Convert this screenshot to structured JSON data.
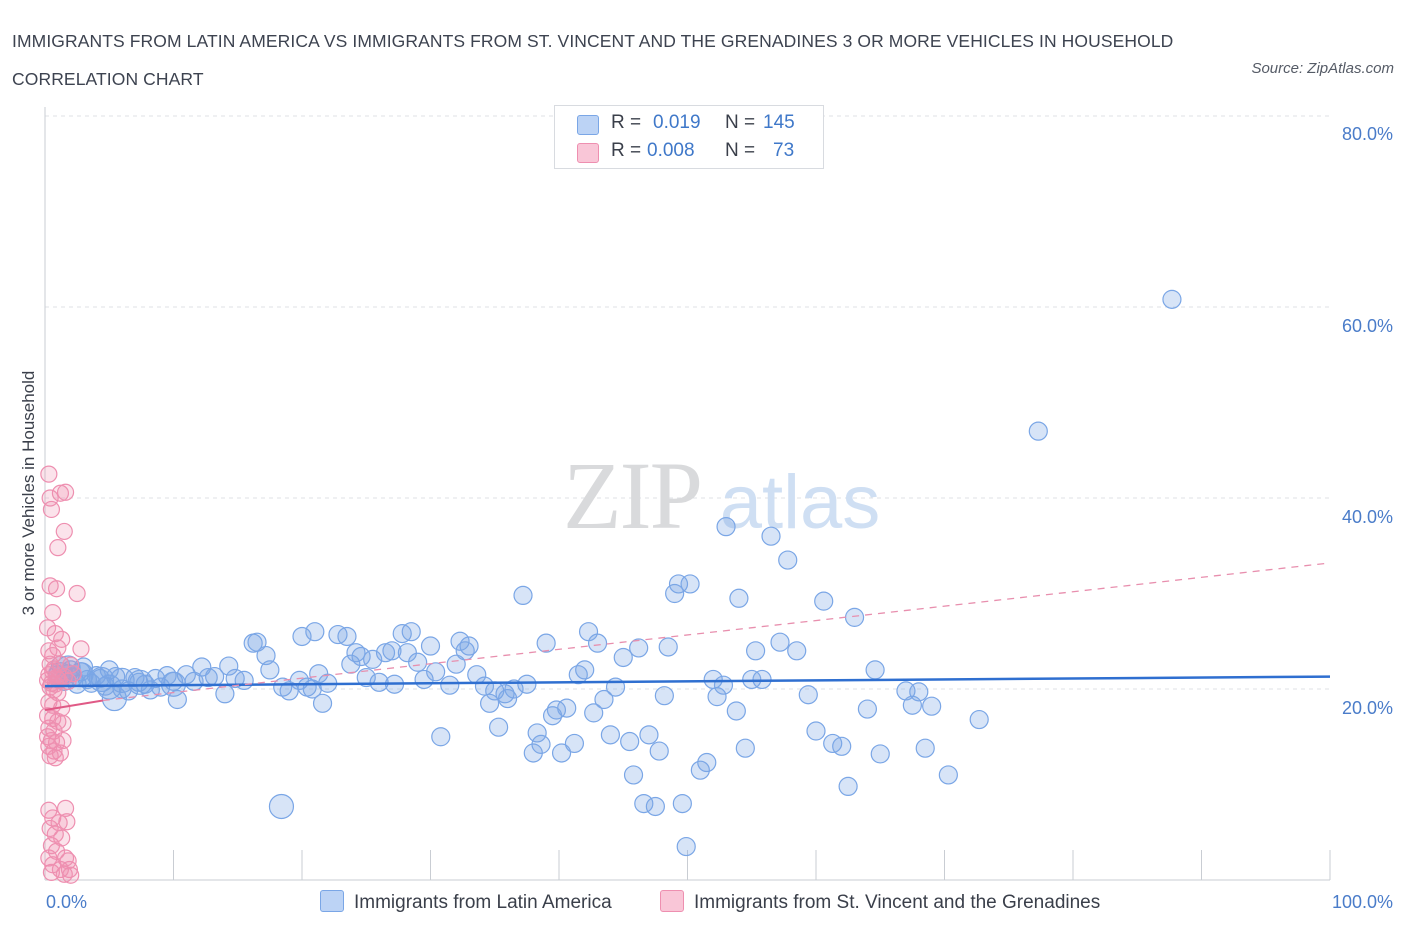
{
  "chart_data": {
    "type": "scatter",
    "title": "IMMIGRANTS FROM LATIN AMERICA VS IMMIGRANTS FROM ST. VINCENT AND THE GRENADINES 3 OR MORE VEHICLES IN HOUSEHOLD CORRELATION CHART",
    "source": "Source: ZipAtlas.com",
    "ylabel": "3 or more Vehicles in Household",
    "xlim": [
      0,
      100
    ],
    "ylim": [
      0,
      80
    ],
    "x_tick_labels": [
      "0.0%",
      "100.0%"
    ],
    "y_ticks": [
      20,
      40,
      60,
      80
    ],
    "y_tick_labels": [
      "20.0%",
      "40.0%",
      "60.0%",
      "80.0%"
    ],
    "watermark": {
      "zip": "ZIP",
      "atlas": "atlas"
    },
    "legend": {
      "r_label": "R =",
      "n_label": "N =",
      "entries": [
        {
          "r": "0.019",
          "n": "145"
        },
        {
          "r": "0.008",
          "n": "73"
        }
      ]
    },
    "series": [
      {
        "name": "Immigrants from Latin America",
        "color": "#7aa6e6",
        "fill": "rgba(122,166,230,0.30)",
        "trend": {
          "x0": 0,
          "y0": 20.3,
          "x1": 100,
          "y1": 21.3,
          "color": "#2f6fd0"
        },
        "points": [
          [
            1.0,
            21.5
          ],
          [
            1.2,
            22.5
          ],
          [
            1.5,
            20.8
          ],
          [
            1.8,
            21.6
          ],
          [
            2.0,
            22.0
          ],
          [
            2.2,
            21.2
          ],
          [
            2.5,
            20.5
          ],
          [
            2.8,
            21.8
          ],
          [
            3.0,
            22.3
          ],
          [
            3.3,
            21.0
          ],
          [
            3.6,
            20.6
          ],
          [
            4.0,
            21.4
          ],
          [
            4.3,
            21.1
          ],
          [
            4.7,
            20.3
          ],
          [
            5.0,
            22.0
          ],
          [
            5.5,
            21.3
          ],
          [
            6.0,
            20.0
          ],
          [
            6.5,
            19.8
          ],
          [
            7.0,
            21.2
          ],
          [
            7.3,
            20.7
          ],
          [
            7.8,
            20.5
          ],
          [
            8.2,
            19.9
          ],
          [
            8.6,
            21.1
          ],
          [
            9.0,
            20.2
          ],
          [
            9.5,
            21.4
          ],
          [
            10.0,
            20.8
          ],
          [
            10.3,
            18.9
          ],
          [
            11.0,
            21.5
          ],
          [
            11.6,
            20.8
          ],
          [
            12.2,
            22.3
          ],
          [
            12.7,
            21.2
          ],
          [
            13.2,
            21.3
          ],
          [
            14.0,
            19.5
          ],
          [
            14.3,
            22.4
          ],
          [
            14.8,
            21.1
          ],
          [
            15.5,
            20.9
          ],
          [
            16.2,
            24.8
          ],
          [
            16.5,
            24.9
          ],
          [
            17.2,
            23.5
          ],
          [
            17.5,
            22.0
          ],
          [
            18.5,
            20.2
          ],
          [
            19.0,
            19.8
          ],
          [
            19.8,
            20.9
          ],
          [
            20.0,
            25.5
          ],
          [
            20.4,
            20.2
          ],
          [
            20.8,
            20.0
          ],
          [
            21.0,
            26.0
          ],
          [
            21.3,
            21.6
          ],
          [
            21.6,
            18.5
          ],
          [
            22.0,
            20.6
          ],
          [
            22.8,
            25.7
          ],
          [
            23.5,
            25.5
          ],
          [
            23.8,
            22.6
          ],
          [
            24.2,
            23.8
          ],
          [
            24.6,
            23.4
          ],
          [
            25.0,
            21.2
          ],
          [
            25.5,
            23.1
          ],
          [
            26.0,
            20.7
          ],
          [
            26.5,
            23.8
          ],
          [
            27.0,
            24.0
          ],
          [
            27.2,
            20.5
          ],
          [
            27.8,
            25.8
          ],
          [
            28.2,
            23.8
          ],
          [
            28.5,
            26.0
          ],
          [
            29.0,
            22.8
          ],
          [
            29.5,
            21.0
          ],
          [
            30.0,
            24.5
          ],
          [
            30.4,
            21.8
          ],
          [
            30.8,
            15.0
          ],
          [
            31.5,
            20.4
          ],
          [
            32.0,
            22.6
          ],
          [
            32.3,
            25.0
          ],
          [
            32.7,
            24.0
          ],
          [
            33.0,
            24.5
          ],
          [
            33.6,
            21.5
          ],
          [
            34.2,
            20.3
          ],
          [
            34.6,
            18.5
          ],
          [
            35.0,
            19.8
          ],
          [
            35.3,
            16.0
          ],
          [
            35.8,
            19.5
          ],
          [
            36.0,
            19.0
          ],
          [
            36.5,
            20.0
          ],
          [
            37.2,
            29.8
          ],
          [
            37.5,
            20.5
          ],
          [
            38.0,
            13.3
          ],
          [
            38.3,
            15.4
          ],
          [
            38.6,
            14.2
          ],
          [
            39.0,
            24.8
          ],
          [
            39.5,
            17.2
          ],
          [
            39.8,
            17.8
          ],
          [
            40.2,
            13.3
          ],
          [
            40.6,
            18.0
          ],
          [
            41.2,
            14.3
          ],
          [
            41.5,
            21.5
          ],
          [
            42.0,
            22.0
          ],
          [
            42.3,
            26.0
          ],
          [
            42.7,
            17.5
          ],
          [
            43.0,
            24.8
          ],
          [
            43.5,
            18.9
          ],
          [
            44.0,
            15.2
          ],
          [
            44.4,
            20.2
          ],
          [
            45.0,
            23.3
          ],
          [
            45.5,
            14.5
          ],
          [
            45.8,
            11.0
          ],
          [
            46.2,
            24.3
          ],
          [
            46.6,
            8.0
          ],
          [
            47.0,
            15.2
          ],
          [
            47.5,
            7.7
          ],
          [
            47.8,
            13.5
          ],
          [
            48.2,
            19.3
          ],
          [
            48.5,
            24.4
          ],
          [
            49.0,
            30.0
          ],
          [
            49.3,
            31.0
          ],
          [
            49.6,
            8.0
          ],
          [
            49.9,
            3.5
          ],
          [
            50.2,
            31.0
          ],
          [
            51.0,
            11.5
          ],
          [
            51.5,
            12.3
          ],
          [
            52.0,
            21.0
          ],
          [
            52.3,
            19.2
          ],
          [
            52.8,
            20.4
          ],
          [
            53.0,
            37.0
          ],
          [
            53.8,
            17.7
          ],
          [
            54.0,
            29.5
          ],
          [
            54.5,
            13.8
          ],
          [
            55.0,
            21.0
          ],
          [
            55.3,
            24.0
          ],
          [
            55.8,
            21.0
          ],
          [
            56.5,
            36.0
          ],
          [
            57.2,
            24.9
          ],
          [
            57.8,
            33.5
          ],
          [
            58.5,
            24.0
          ],
          [
            59.4,
            19.4
          ],
          [
            60.0,
            15.6
          ],
          [
            60.6,
            29.2
          ],
          [
            61.3,
            14.3
          ],
          [
            62.0,
            14.0
          ],
          [
            62.5,
            9.8
          ],
          [
            63.0,
            27.5
          ],
          [
            64.0,
            17.9
          ],
          [
            64.6,
            22.0
          ],
          [
            65.0,
            13.2
          ],
          [
            67.0,
            19.8
          ],
          [
            67.5,
            18.3
          ],
          [
            68.0,
            19.7
          ],
          [
            68.5,
            13.8
          ],
          [
            69.0,
            18.2
          ],
          [
            70.3,
            11.0
          ],
          [
            72.7,
            16.8
          ],
          [
            77.3,
            47.0
          ],
          [
            87.7,
            60.8
          ]
        ],
        "large_points": [
          [
            1.2,
            21.5
          ],
          [
            2.8,
            21.5
          ],
          [
            4.4,
            21.0
          ],
          [
            6.0,
            20.9
          ],
          [
            5.0,
            20.2
          ],
          [
            7.4,
            20.7
          ],
          [
            10.0,
            20.5
          ],
          [
            5.4,
            19.0
          ],
          [
            18.4,
            7.7
          ],
          [
            1.8,
            22.2
          ]
        ]
      },
      {
        "name": "Immigrants from St. Vincent and the Grenadines",
        "color": "#ee8fb0",
        "fill": "rgba(240,143,176,0.25)",
        "trend": {
          "x0": 0,
          "y0": 17.8,
          "x1": 4.5,
          "y1": 18.8,
          "color": "#e05a86"
        },
        "trend_extension": {
          "x0": 4.5,
          "y0": 18.8,
          "x1": 100,
          "y1": 33.2,
          "color": "#e88fae"
        },
        "points": [
          [
            0.3,
            42.5
          ],
          [
            0.4,
            40.0
          ],
          [
            0.5,
            38.8
          ],
          [
            1.2,
            40.5
          ],
          [
            1.6,
            40.6
          ],
          [
            1.5,
            36.5
          ],
          [
            1.0,
            34.8
          ],
          [
            0.4,
            30.8
          ],
          [
            0.9,
            30.5
          ],
          [
            2.5,
            30.0
          ],
          [
            0.6,
            28.0
          ],
          [
            0.2,
            26.4
          ],
          [
            0.8,
            25.8
          ],
          [
            1.3,
            25.2
          ],
          [
            0.3,
            24.0
          ],
          [
            0.6,
            23.5
          ],
          [
            1.0,
            24.3
          ],
          [
            2.8,
            24.2
          ],
          [
            0.4,
            22.6
          ],
          [
            0.7,
            22.1
          ],
          [
            1.2,
            22.6
          ],
          [
            2.0,
            22.5
          ],
          [
            0.3,
            21.5
          ],
          [
            0.6,
            21.8
          ],
          [
            0.9,
            21.2
          ],
          [
            1.5,
            21.3
          ],
          [
            2.2,
            21.6
          ],
          [
            0.2,
            20.9
          ],
          [
            0.5,
            20.6
          ],
          [
            0.8,
            20.5
          ],
          [
            1.1,
            20.9
          ],
          [
            1.8,
            20.8
          ],
          [
            0.4,
            20.2
          ],
          [
            0.7,
            19.9
          ],
          [
            1.0,
            19.6
          ],
          [
            0.3,
            18.6
          ],
          [
            0.6,
            18.3
          ],
          [
            1.3,
            18.0
          ],
          [
            0.2,
            17.2
          ],
          [
            0.6,
            16.9
          ],
          [
            1.0,
            16.6
          ],
          [
            1.4,
            16.4
          ],
          [
            0.3,
            15.9
          ],
          [
            0.7,
            15.6
          ],
          [
            0.2,
            15.0
          ],
          [
            0.5,
            14.6
          ],
          [
            0.9,
            14.4
          ],
          [
            1.4,
            14.6
          ],
          [
            0.3,
            14.0
          ],
          [
            0.7,
            13.5
          ],
          [
            1.2,
            13.3
          ],
          [
            0.4,
            13.0
          ],
          [
            0.8,
            12.8
          ],
          [
            0.3,
            7.3
          ],
          [
            1.6,
            7.5
          ],
          [
            0.6,
            6.5
          ],
          [
            1.1,
            6.0
          ],
          [
            1.7,
            6.1
          ],
          [
            0.4,
            5.4
          ],
          [
            0.8,
            4.8
          ],
          [
            1.3,
            4.4
          ],
          [
            0.5,
            3.6
          ],
          [
            0.9,
            3.0
          ],
          [
            0.3,
            2.3
          ],
          [
            1.6,
            2.3
          ],
          [
            1.8,
            2.0
          ],
          [
            0.6,
            1.6
          ],
          [
            1.2,
            1.1
          ],
          [
            1.9,
            1.1
          ],
          [
            0.5,
            0.8
          ],
          [
            1.5,
            0.6
          ],
          [
            2.0,
            0.5
          ],
          [
            1.0,
            21.0
          ]
        ]
      }
    ]
  },
  "bottom_legend": {
    "series1": "Immigrants from Latin America",
    "series2": "Immigrants from St. Vincent and the Grenadines"
  }
}
